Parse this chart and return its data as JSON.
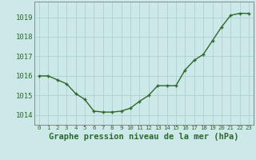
{
  "x": [
    0,
    1,
    2,
    3,
    4,
    5,
    6,
    7,
    8,
    9,
    10,
    11,
    12,
    13,
    14,
    15,
    16,
    17,
    18,
    19,
    20,
    21,
    22,
    23
  ],
  "y": [
    1016.0,
    1016.0,
    1015.8,
    1015.6,
    1015.1,
    1014.8,
    1014.2,
    1014.15,
    1014.15,
    1014.2,
    1014.35,
    1014.7,
    1015.0,
    1015.5,
    1015.5,
    1015.5,
    1016.3,
    1016.8,
    1017.1,
    1017.8,
    1018.5,
    1019.1,
    1019.2,
    1019.2
  ],
  "line_color": "#2d6a2d",
  "marker_color": "#2d6a2d",
  "bg_color": "#cce8e8",
  "grid_color": "#aacccc",
  "border_color": "#888888",
  "xlabel": "Graphe pression niveau de la mer (hPa)",
  "xlabel_color": "#2d6a2d",
  "tick_color": "#2d6a2d",
  "ylim": [
    1013.5,
    1019.8
  ],
  "xlim": [
    -0.5,
    23.5
  ],
  "yticks": [
    1014,
    1015,
    1016,
    1017,
    1018,
    1019
  ],
  "xtick_labels": [
    "0",
    "1",
    "2",
    "3",
    "4",
    "5",
    "6",
    "7",
    "8",
    "9",
    "10",
    "11",
    "12",
    "13",
    "14",
    "15",
    "16",
    "17",
    "18",
    "19",
    "20",
    "21",
    "22",
    "23"
  ],
  "ytick_fontsize": 6.5,
  "xtick_fontsize": 5.2,
  "xlabel_fontsize": 7.5,
  "linewidth": 1.0,
  "markersize": 3.5
}
